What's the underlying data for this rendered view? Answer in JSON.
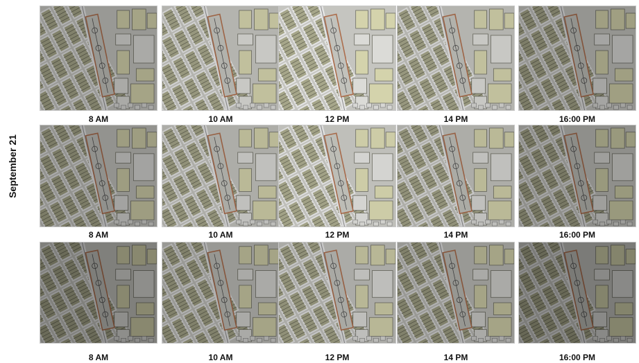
{
  "figure": {
    "side_label": "September 21",
    "rows": [
      {
        "captions": [
          "8 AM",
          "10 AM",
          "12 PM",
          "14 PM",
          "16:00 PM"
        ]
      },
      {
        "captions": [
          "8 AM",
          "10 AM",
          "12 PM",
          "14 PM",
          "16:00 PM"
        ]
      },
      {
        "captions": [
          "8 AM",
          "10 AM",
          "12 PM",
          "14 PM",
          "16:00 PM"
        ]
      }
    ],
    "colors": {
      "road": "#ffffff",
      "block": "#b9b99a",
      "house_line": "#6a6a58",
      "highlight_building": "#ecebc0",
      "site_outline": "#c07a55",
      "site_fill": "#d9d9d2"
    }
  }
}
